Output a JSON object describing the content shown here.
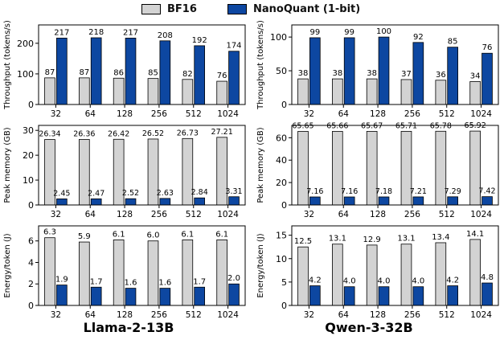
{
  "legend": {
    "bf16_label": "BF16",
    "nq_label": "NanoQuant (1-bit)",
    "bf16_color": "#d3d3d3",
    "nq_color": "#0d47a1"
  },
  "models": [
    "Llama-2-13B",
    "Qwen-3-32B"
  ],
  "chart_data": [
    {
      "type": "bar",
      "model": "Llama-2-13B",
      "metric": "throughput",
      "categories": [
        "32",
        "64",
        "128",
        "256",
        "512",
        "1024"
      ],
      "ylabel": "Throughput (tokens/s)",
      "ylim": [
        0,
        260
      ],
      "yticks": [
        0,
        100,
        200
      ],
      "series": [
        {
          "name": "BF16",
          "values": [
            87,
            87,
            86,
            85,
            82,
            76
          ],
          "labels": [
            "87",
            "87",
            "86",
            "85",
            "82",
            "76"
          ]
        },
        {
          "name": "NanoQuant (1-bit)",
          "values": [
            217,
            218,
            217,
            208,
            192,
            174
          ],
          "labels": [
            "217",
            "218",
            "217",
            "208",
            "192",
            "174"
          ]
        }
      ]
    },
    {
      "type": "bar",
      "model": "Qwen-3-32B",
      "metric": "throughput",
      "categories": [
        "32",
        "64",
        "128",
        "256",
        "512",
        "1024"
      ],
      "ylabel": "Throughput (tokens/s)",
      "ylim": [
        0,
        118
      ],
      "yticks": [
        0,
        50,
        100
      ],
      "series": [
        {
          "name": "BF16",
          "values": [
            38,
            38,
            38,
            37,
            36,
            34
          ],
          "labels": [
            "38",
            "38",
            "38",
            "37",
            "36",
            "34"
          ]
        },
        {
          "name": "NanoQuant (1-bit)",
          "values": [
            99,
            99,
            100,
            92,
            85,
            76
          ],
          "labels": [
            "99",
            "99",
            "100",
            "92",
            "85",
            "76"
          ]
        }
      ]
    },
    {
      "type": "bar",
      "model": "Llama-2-13B",
      "metric": "memory",
      "categories": [
        "32",
        "64",
        "128",
        "256",
        "512",
        "1024"
      ],
      "ylabel": "Peak memory (GB)",
      "ylim": [
        0,
        32
      ],
      "yticks": [
        0,
        10,
        20,
        30
      ],
      "series": [
        {
          "name": "BF16",
          "values": [
            26.34,
            26.36,
            26.42,
            26.52,
            26.73,
            27.21
          ],
          "labels": [
            "26.34",
            "26.36",
            "26.42",
            "26.52",
            "26.73",
            "27.21"
          ]
        },
        {
          "name": "NanoQuant (1-bit)",
          "values": [
            2.45,
            2.47,
            2.52,
            2.63,
            2.84,
            3.31
          ],
          "labels": [
            "2.45",
            "2.47",
            "2.52",
            "2.63",
            "2.84",
            "3.31"
          ]
        }
      ]
    },
    {
      "type": "bar",
      "model": "Qwen-3-32B",
      "metric": "memory",
      "categories": [
        "32",
        "64",
        "128",
        "256",
        "512",
        "1024"
      ],
      "ylabel": "Peak memory (GB)",
      "ylim": [
        0,
        71
      ],
      "yticks": [
        0,
        20,
        40,
        60
      ],
      "series": [
        {
          "name": "BF16",
          "values": [
            65.65,
            65.66,
            65.67,
            65.71,
            65.78,
            65.92
          ],
          "labels": [
            "65.65",
            "65.66",
            "65.67",
            "65.71",
            "65.78",
            "65.92"
          ]
        },
        {
          "name": "NanoQuant (1-bit)",
          "values": [
            7.16,
            7.16,
            7.18,
            7.21,
            7.29,
            7.42
          ],
          "labels": [
            "7.16",
            "7.16",
            "7.18",
            "7.21",
            "7.29",
            "7.42"
          ]
        }
      ]
    },
    {
      "type": "bar",
      "model": "Llama-2-13B",
      "metric": "energy",
      "categories": [
        "32",
        "64",
        "128",
        "256",
        "512",
        "1024"
      ],
      "ylabel": "Energy/token (J)",
      "ylim": [
        0,
        7.4
      ],
      "yticks": [
        0,
        2,
        4,
        6
      ],
      "series": [
        {
          "name": "BF16",
          "values": [
            6.3,
            5.9,
            6.1,
            6.0,
            6.1,
            6.1
          ],
          "labels": [
            "6.3",
            "5.9",
            "6.1",
            "6.0",
            "6.1",
            "6.1"
          ]
        },
        {
          "name": "NanoQuant (1-bit)",
          "values": [
            1.9,
            1.7,
            1.6,
            1.6,
            1.7,
            2.0
          ],
          "labels": [
            "1.9",
            "1.7",
            "1.6",
            "1.6",
            "1.7",
            "2.0"
          ]
        }
      ]
    },
    {
      "type": "bar",
      "model": "Qwen-3-32B",
      "metric": "energy",
      "categories": [
        "32",
        "64",
        "128",
        "256",
        "512",
        "1024"
      ],
      "ylabel": "Energy/token (J)",
      "ylim": [
        0,
        17
      ],
      "yticks": [
        0,
        5,
        10,
        15
      ],
      "series": [
        {
          "name": "BF16",
          "values": [
            12.5,
            13.1,
            12.9,
            13.1,
            13.4,
            14.1
          ],
          "labels": [
            "12.5",
            "13.1",
            "12.9",
            "13.1",
            "13.4",
            "14.1"
          ]
        },
        {
          "name": "NanoQuant (1-bit)",
          "values": [
            4.2,
            4.0,
            4.0,
            4.0,
            4.2,
            4.8
          ],
          "labels": [
            "4.2",
            "4.0",
            "4.0",
            "4.0",
            "4.2",
            "4.8"
          ]
        }
      ]
    }
  ]
}
